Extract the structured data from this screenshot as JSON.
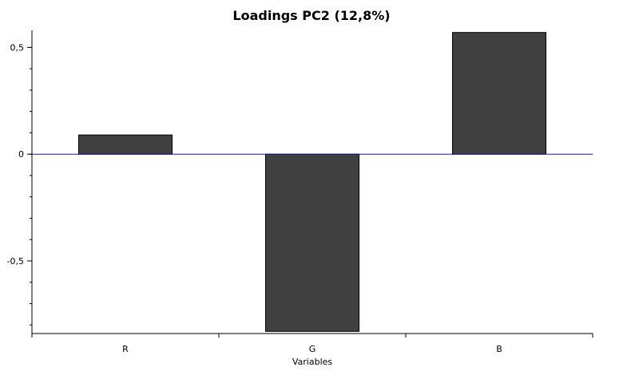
{
  "chart_data": {
    "type": "bar",
    "title": "Loadings PC2 (12,8%)",
    "xlabel": "Variables",
    "ylabel": "",
    "categories": [
      "R",
      "G",
      "B"
    ],
    "values": [
      0.09,
      -0.83,
      0.57
    ],
    "ylim": [
      -0.84,
      0.58
    ],
    "yticks": [
      0.5,
      0,
      -0.5
    ],
    "ytick_labels": [
      "0,5",
      "0",
      "-0,5"
    ],
    "grid": false,
    "legend": "none",
    "colors": {
      "bar_fill": "#404040",
      "bar_stroke": "#000000",
      "zero_line": "#1a1a8c",
      "axis": "#000000"
    }
  }
}
